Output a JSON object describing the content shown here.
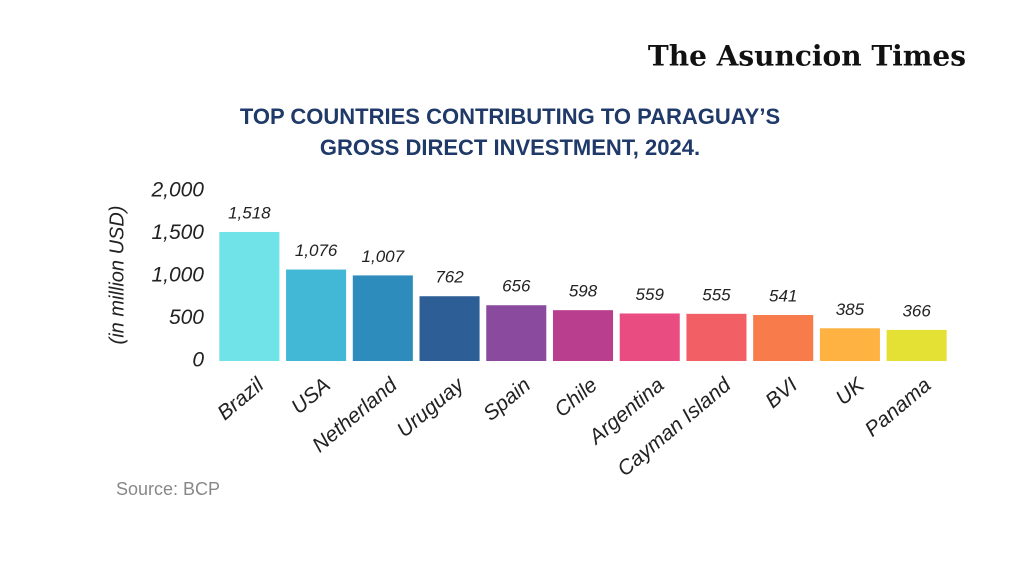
{
  "masthead": "The Asuncion Times",
  "chart_data": {
    "type": "bar",
    "title": [
      "TOP COUNTRIES CONTRIBUTING TO PARAGUAY’S",
      "GROSS DIRECT INVESTMENT, 2024."
    ],
    "y_label": "(in million USD)",
    "categories": [
      "Brazil",
      "USA",
      "Netherland",
      "Uruguay",
      "Spain",
      "Chile",
      "Argentina",
      "Cayman Island",
      "BVI",
      "UK",
      "Panama"
    ],
    "values": [
      1518,
      1076,
      1007,
      762,
      656,
      598,
      559,
      555,
      541,
      385,
      366
    ],
    "value_labels": [
      "1,518",
      "1,076",
      "1,007",
      "762",
      "656",
      "598",
      "559",
      "555",
      "541",
      "385",
      "366"
    ],
    "colors": [
      "#6fe3e8",
      "#43b8d6",
      "#2e8cbd",
      "#2d5e96",
      "#8a4a9e",
      "#b93e8e",
      "#e94c81",
      "#f26066",
      "#f77b4b",
      "#fdb242",
      "#e5e034"
    ],
    "ylim": [
      0,
      2000
    ],
    "yticks": [
      0,
      500,
      {
        "value": 1000,
        "label": "1,000"
      },
      {
        "value": 1500,
        "label": "1,500"
      },
      {
        "value": 2000,
        "label": "2,000"
      }
    ],
    "grid": false,
    "source": "Source: BCP"
  }
}
